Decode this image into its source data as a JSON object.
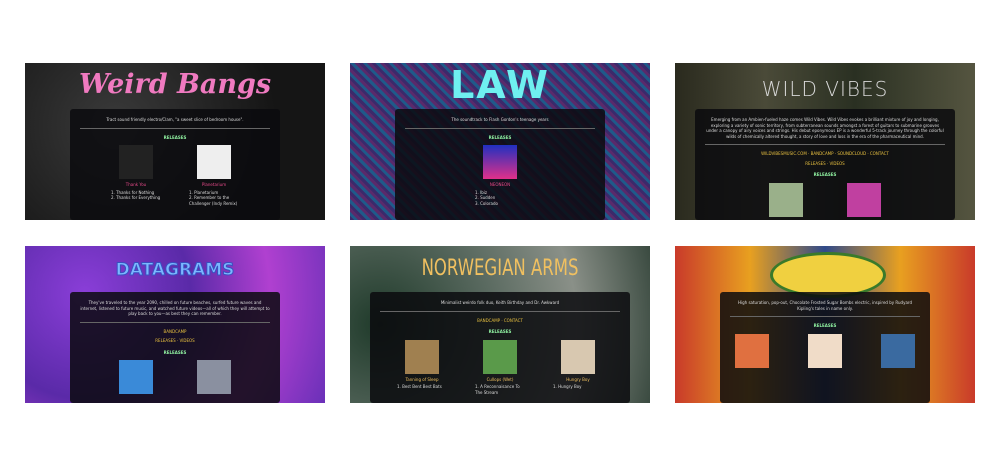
{
  "thumbnails": [
    {
      "title": "Weird Bangs",
      "tagline": "Tract sound friendly electro/Clam, \"a sweet slice of bedroom house\".",
      "links": [],
      "section": "RELEASES",
      "releases": [
        {
          "name": "Thank You",
          "tracks": [
            "1. Thanks for Nothing",
            "2. Thanks for Everything"
          ]
        },
        {
          "name": "Planetarium",
          "tracks": [
            "1. Planetarium",
            "2. Remember to the Challenger (Indy Remix)"
          ]
        }
      ]
    },
    {
      "title": "LAW",
      "tagline": "The soundtrack to Flash Gordon's teenage years",
      "links": [],
      "section": "RELEASES",
      "releases": [
        {
          "name": "NEONEON",
          "tracks": [
            "1. Ibiz",
            "2. Sudden",
            "3. Colorado"
          ]
        }
      ]
    },
    {
      "title": "WILD VIBES",
      "tagline": "Emerging from an Ambien-fueled haze comes Wild Vibes. Wild Vibes evokes a brilliant mixture of joy and longing, exploring a variety of sonic territory, from subterranean sounds amongst a forest of guitars to submarine grooves under a canopy of airy voices and strings. His debut eponymous EP is a wonderful 5-track journey through the colorful wilds of chemically altered thought, a story of love and loss in the era of the pharmaceutical mind.",
      "links": [
        "WILDVIBESMUSIC.COM · BANDCAMP · SOUNDCLOUD · CONTACT",
        "RELEASES · VIDEOS"
      ],
      "section": "RELEASES",
      "releases": [
        {
          "name": null,
          "tracks": []
        },
        {
          "name": null,
          "tracks": []
        }
      ]
    },
    {
      "title": "DATAGRAMS",
      "tagline": "They've traveled to the year 2090, chilled on future beaches, surfed future waves and internet, listened to future music, and watched future videos—all of which they will attempt to play back to you—as best they can remember.",
      "links": [
        "BANDCAMP",
        "RELEASES · VIDEOS"
      ],
      "section": "RELEASES",
      "releases": [
        {
          "name": null,
          "tracks": []
        },
        {
          "name": null,
          "tracks": []
        }
      ]
    },
    {
      "title": "NORWEGIAN ARMS",
      "tagline": "Minimalist weirdo folk duo, Keith Birthday and Dr. Awkward",
      "links": [
        "BANDCAMP · CONTACT"
      ],
      "section": "RELEASES",
      "releases": [
        {
          "name": "Tanning of Sleep",
          "tracks": [
            "1. Best Bent Best Bats"
          ]
        },
        {
          "name": "Cullops (Wet)",
          "tracks": [
            "1. A Reconnaisance To The Stream"
          ]
        },
        {
          "name": "Hungry Boy",
          "tracks": [
            "1. Hungry Boy"
          ]
        }
      ]
    },
    {
      "title": null,
      "tagline": "High saturation, pop-out, Chocolate Frosted Sugar Bombs electric, inspired by Rudyard Kipling's tales in name only.",
      "links": [],
      "section": "RELEASES",
      "releases": [
        {
          "name": null,
          "tracks": []
        },
        {
          "name": null,
          "tracks": []
        },
        {
          "name": null,
          "tracks": []
        }
      ]
    }
  ]
}
